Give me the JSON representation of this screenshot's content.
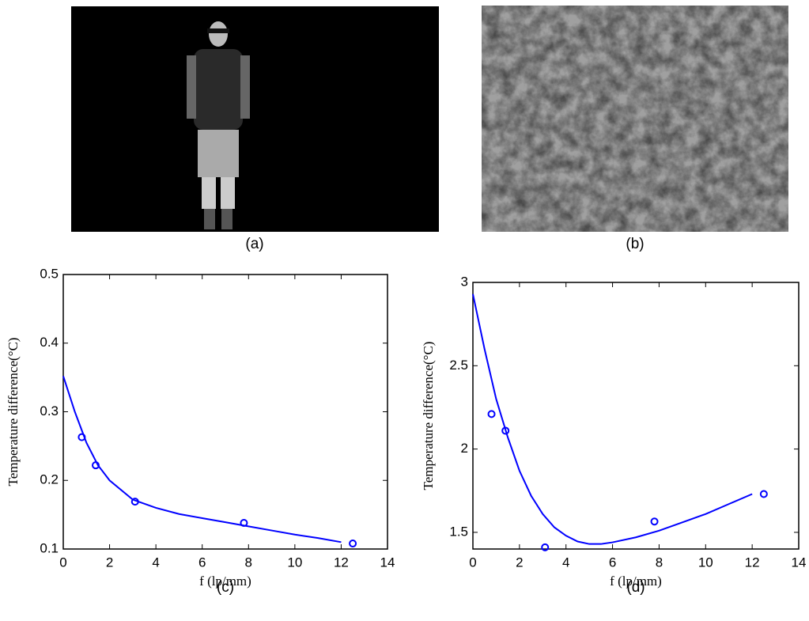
{
  "images": [
    {
      "caption": "(a)"
    },
    {
      "caption": "(b)"
    }
  ],
  "chart_data": [
    {
      "type": "line",
      "caption": "(c)",
      "xlabel": "f (lp/mm)",
      "ylabel": "Temperature difference(°C)",
      "xlim": [
        0,
        14
      ],
      "xticks": [
        0,
        2,
        4,
        6,
        8,
        10,
        12,
        14
      ],
      "ylim": [
        0.1,
        0.5
      ],
      "yticks": [
        0.1,
        0.2,
        0.3,
        0.4,
        0.5
      ],
      "series": [
        {
          "color": "#0000ff",
          "marker": "circle",
          "x": [
            0.8,
            1.4,
            3.1,
            7.8,
            12.5
          ],
          "values": [
            0.263,
            0.222,
            0.169,
            0.138,
            0.108
          ]
        },
        {
          "color": "#0000ff",
          "x": [
            0,
            0.5,
            1,
            1.5,
            2,
            3,
            4,
            5,
            6,
            7,
            8,
            9,
            10,
            11,
            12
          ],
          "values": [
            0.352,
            0.3,
            0.255,
            0.222,
            0.2,
            0.172,
            0.16,
            0.151,
            0.145,
            0.139,
            0.133,
            0.127,
            0.121,
            0.116,
            0.11
          ]
        }
      ]
    },
    {
      "type": "line",
      "caption": "(d)",
      "xlabel": "f (lp/mm)",
      "ylabel": "Temperature difference(°C)",
      "xlim": [
        0,
        14
      ],
      "xticks": [
        0,
        2,
        4,
        6,
        8,
        10,
        12,
        14
      ],
      "ylim": [
        1.4,
        3
      ],
      "yticks": [
        1.5,
        2,
        2.5,
        3
      ],
      "series": [
        {
          "color": "#0000ff",
          "marker": "circle",
          "x": [
            0.8,
            1.4,
            3.1,
            7.8,
            12.5
          ],
          "values": [
            2.21,
            2.11,
            1.41,
            1.565,
            1.73
          ]
        },
        {
          "color": "#0000ff",
          "x": [
            0,
            0.5,
            1,
            1.5,
            2,
            2.5,
            3,
            3.5,
            4,
            4.5,
            5,
            5.5,
            6,
            7,
            8,
            9,
            10,
            11,
            12
          ],
          "values": [
            2.93,
            2.6,
            2.3,
            2.07,
            1.87,
            1.72,
            1.61,
            1.53,
            1.48,
            1.445,
            1.43,
            1.43,
            1.44,
            1.47,
            1.51,
            1.56,
            1.61,
            1.67,
            1.73
          ]
        }
      ]
    }
  ]
}
